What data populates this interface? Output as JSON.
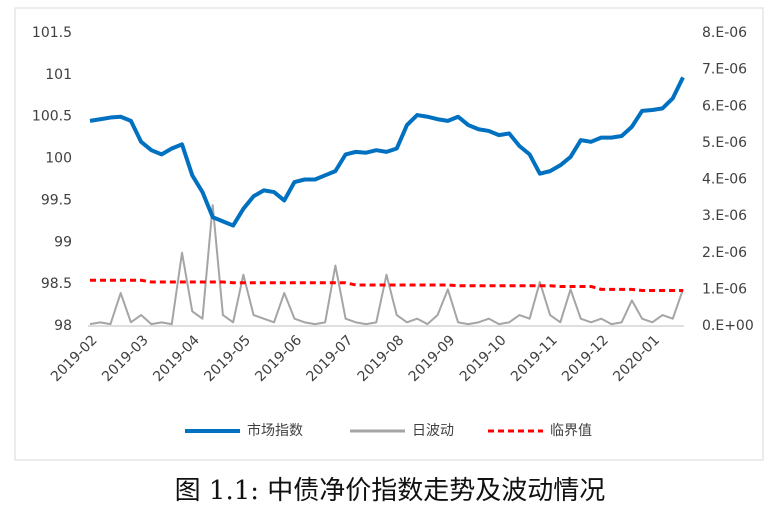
{
  "chart_data": {
    "type": "line",
    "title": "图 1.1:  中债净价指数走势及波动情况",
    "categories": [
      "2019-02",
      null,
      null,
      null,
      null,
      "2019-03",
      null,
      null,
      null,
      null,
      "2019-04",
      null,
      null,
      null,
      null,
      "2019-05",
      null,
      null,
      null,
      null,
      "2019-06",
      null,
      null,
      null,
      null,
      "2019-07",
      null,
      null,
      null,
      null,
      "2019-08",
      null,
      null,
      null,
      null,
      "2019-09",
      null,
      null,
      null,
      null,
      "2019-10",
      null,
      null,
      null,
      null,
      "2019-11",
      null,
      null,
      null,
      null,
      "2019-12",
      null,
      null,
      null,
      null,
      "2020-01",
      null,
      null,
      null
    ],
    "series": [
      {
        "name": "市场指数",
        "color": "#0070c0",
        "values": [
          100.45,
          100.47,
          100.49,
          100.5,
          100.45,
          100.2,
          100.1,
          100.05,
          100.12,
          100.17,
          99.8,
          99.6,
          99.3,
          99.25,
          99.2,
          99.4,
          99.55,
          99.62,
          99.6,
          99.5,
          99.72,
          99.75,
          99.75,
          99.8,
          99.85,
          100.05,
          100.08,
          100.07,
          100.1,
          100.08,
          100.12,
          100.4,
          100.52,
          100.5,
          100.47,
          100.45,
          100.5,
          100.4,
          100.35,
          100.33,
          100.28,
          100.3,
          100.15,
          100.05,
          99.82,
          99.85,
          99.92,
          100.02,
          100.22,
          100.2,
          100.25,
          100.25,
          100.27,
          100.38,
          100.57,
          100.58,
          100.6,
          100.72,
          100.97
        ]
      },
      {
        "name": "日波动",
        "color": "#a5a5a5",
        "axis": "y2",
        "values": [
          5e-08,
          1e-07,
          5e-08,
          9e-07,
          1e-07,
          3e-07,
          5e-08,
          1e-07,
          5e-08,
          2e-06,
          4e-07,
          2e-07,
          3.3e-06,
          3e-07,
          1e-07,
          1.4e-06,
          3e-07,
          2e-07,
          1e-07,
          9e-07,
          2e-07,
          1e-07,
          5e-08,
          1e-07,
          1.65e-06,
          2e-07,
          1e-07,
          5e-08,
          1e-07,
          1.4e-06,
          3e-07,
          1e-07,
          2e-07,
          5e-08,
          3e-07,
          1e-06,
          1e-07,
          5e-08,
          1e-07,
          2e-07,
          5e-08,
          1e-07,
          3e-07,
          2e-07,
          1.2e-06,
          3e-07,
          1e-07,
          1e-06,
          2e-07,
          1e-07,
          2e-07,
          5e-08,
          1e-07,
          7e-07,
          2e-07,
          1e-07,
          3e-07,
          2e-07,
          1e-06
        ]
      },
      {
        "name": "临界值",
        "color": "#ff0000",
        "axis": "y2",
        "dash": true,
        "values": [
          1.25e-06,
          1.25e-06,
          1.25e-06,
          1.25e-06,
          1.25e-06,
          1.25e-06,
          1.2e-06,
          1.2e-06,
          1.2e-06,
          1.2e-06,
          1.2e-06,
          1.2e-06,
          1.2e-06,
          1.2e-06,
          1.18e-06,
          1.18e-06,
          1.18e-06,
          1.18e-06,
          1.18e-06,
          1.18e-06,
          1.18e-06,
          1.18e-06,
          1.18e-06,
          1.18e-06,
          1.18e-06,
          1.18e-06,
          1.12e-06,
          1.12e-06,
          1.12e-06,
          1.12e-06,
          1.12e-06,
          1.12e-06,
          1.12e-06,
          1.12e-06,
          1.12e-06,
          1.12e-06,
          1.1e-06,
          1.1e-06,
          1.1e-06,
          1.1e-06,
          1.1e-06,
          1.1e-06,
          1.1e-06,
          1.1e-06,
          1.1e-06,
          1.1e-06,
          1.08e-06,
          1.08e-06,
          1.08e-06,
          1.08e-06,
          1e-06,
          1e-06,
          1e-06,
          1e-06,
          9.7e-07,
          9.7e-07,
          9.7e-07,
          9.7e-07,
          9.7e-07
        ]
      }
    ],
    "ylim": [
      98,
      101.5
    ],
    "yticks": [
      98,
      98.5,
      99,
      99.5,
      100,
      100.5,
      101,
      101.5
    ],
    "y2lim": [
      0,
      8e-06
    ],
    "y2ticks": [
      {
        "value": 0,
        "label": "0.E+00"
      },
      {
        "value": 1e-06,
        "label": "1.E-06"
      },
      {
        "value": 2e-06,
        "label": "2.E-06"
      },
      {
        "value": 3e-06,
        "label": "3.E-06"
      },
      {
        "value": 4e-06,
        "label": "4.E-06"
      },
      {
        "value": 5e-06,
        "label": "5.E-06"
      },
      {
        "value": 6e-06,
        "label": "6.E-06"
      },
      {
        "value": 7e-06,
        "label": "7.E-06"
      },
      {
        "value": 8e-06,
        "label": "8.E-06"
      }
    ],
    "grid": false,
    "legend": "bottom"
  }
}
